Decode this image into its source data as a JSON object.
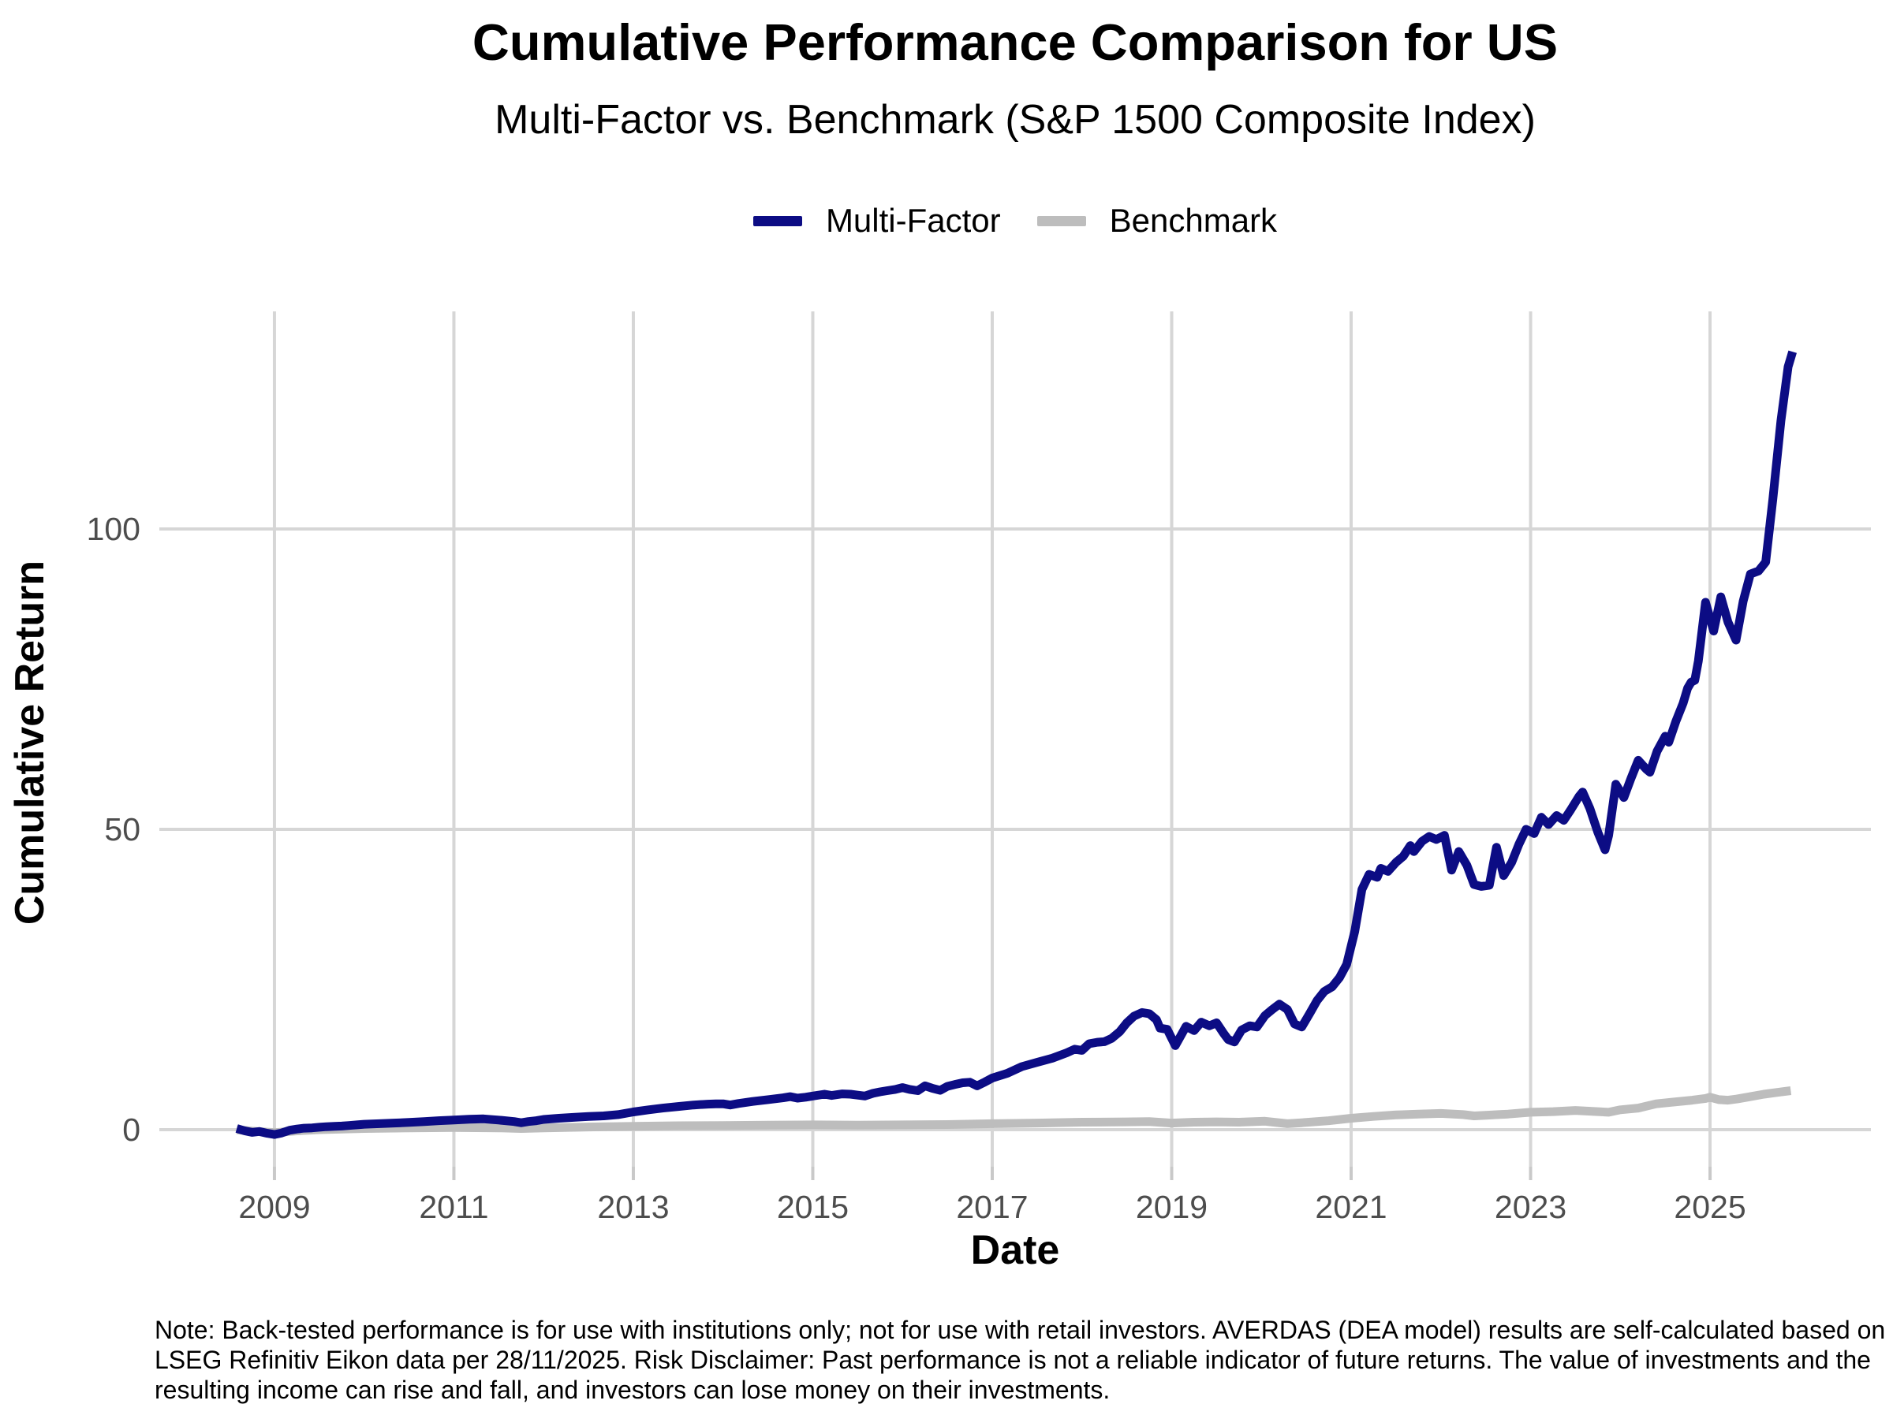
{
  "header": {
    "title": "Cumulative Performance Comparison for US",
    "subtitle": "Multi-Factor vs. Benchmark (S&P 1500 Composite Index)"
  },
  "legend": {
    "items": [
      {
        "label": "Multi-Factor",
        "color": "#0c0c84"
      },
      {
        "label": "Benchmark",
        "color": "#bdbdbd"
      }
    ]
  },
  "axes": {
    "x": {
      "label": "Date"
    },
    "y": {
      "label": "Cumulative Return"
    }
  },
  "note": "Note: Back-tested performance is for use with institutions only; not for use with retail investors. AVERDAS (DEA model) results are self-calculated based on LSEG Refinitiv Eikon data per 28/11/2025. Risk Disclaimer: Past performance is not a reliable indicator of future returns. The value of investments and the resulting income can rise and fall, and investors can lose money on their investments.",
  "colors": {
    "gridline": "#d6d6d6",
    "tick_mark": "#c9c9c9",
    "tick_text": "#4d4d4d",
    "background": "#ffffff"
  },
  "chart_data": {
    "type": "line",
    "title": "Cumulative Performance Comparison for US",
    "subtitle": "Multi-Factor vs. Benchmark (S&P 1500 Composite Index)",
    "xlabel": "Date",
    "ylabel": "Cumulative Return",
    "legend_position": "top-center",
    "grid": true,
    "x_ticks": [
      2009,
      2011,
      2013,
      2015,
      2017,
      2019,
      2021,
      2023,
      2025
    ],
    "y_ticks": [
      0,
      50,
      100
    ],
    "x_domain": [
      2007.717,
      2026.793
    ],
    "y_domain": [
      -6.17,
      136.22
    ],
    "series": [
      {
        "name": "Benchmark",
        "color": "#bdbdbd",
        "points": [
          [
            2008.58,
            0.0
          ],
          [
            2008.75,
            -0.25
          ],
          [
            2009.0,
            -0.5
          ],
          [
            2009.25,
            -0.2
          ],
          [
            2009.5,
            0.0
          ],
          [
            2009.75,
            0.1
          ],
          [
            2010.0,
            0.2
          ],
          [
            2010.5,
            0.3
          ],
          [
            2011.0,
            0.35
          ],
          [
            2011.5,
            0.3
          ],
          [
            2011.75,
            0.2
          ],
          [
            2012.0,
            0.3
          ],
          [
            2012.5,
            0.45
          ],
          [
            2013.0,
            0.55
          ],
          [
            2013.5,
            0.65
          ],
          [
            2014.0,
            0.7
          ],
          [
            2014.5,
            0.75
          ],
          [
            2015.0,
            0.8
          ],
          [
            2015.5,
            0.75
          ],
          [
            2016.0,
            0.8
          ],
          [
            2016.5,
            0.85
          ],
          [
            2017.0,
            1.0
          ],
          [
            2017.5,
            1.1
          ],
          [
            2018.0,
            1.25
          ],
          [
            2018.5,
            1.3
          ],
          [
            2018.75,
            1.35
          ],
          [
            2019.0,
            1.1
          ],
          [
            2019.25,
            1.25
          ],
          [
            2019.5,
            1.3
          ],
          [
            2019.75,
            1.25
          ],
          [
            2020.04,
            1.4
          ],
          [
            2020.29,
            1.0
          ],
          [
            2020.45,
            1.15
          ],
          [
            2020.75,
            1.5
          ],
          [
            2021.0,
            1.9
          ],
          [
            2021.25,
            2.2
          ],
          [
            2021.5,
            2.45
          ],
          [
            2021.75,
            2.6
          ],
          [
            2022.0,
            2.7
          ],
          [
            2022.25,
            2.5
          ],
          [
            2022.37,
            2.3
          ],
          [
            2022.5,
            2.4
          ],
          [
            2022.75,
            2.6
          ],
          [
            2023.0,
            2.9
          ],
          [
            2023.25,
            3.0
          ],
          [
            2023.5,
            3.2
          ],
          [
            2023.75,
            3.0
          ],
          [
            2023.87,
            2.9
          ],
          [
            2024.0,
            3.3
          ],
          [
            2024.2,
            3.6
          ],
          [
            2024.4,
            4.3
          ],
          [
            2024.6,
            4.6
          ],
          [
            2024.8,
            4.9
          ],
          [
            2024.95,
            5.2
          ],
          [
            2025.0,
            5.4
          ],
          [
            2025.1,
            5.0
          ],
          [
            2025.2,
            4.9
          ],
          [
            2025.3,
            5.1
          ],
          [
            2025.45,
            5.5
          ],
          [
            2025.6,
            5.9
          ],
          [
            2025.75,
            6.2
          ],
          [
            2025.9,
            6.5
          ]
        ]
      },
      {
        "name": "Multi-Factor",
        "color": "#0c0c84",
        "points": [
          [
            2008.58,
            0.2
          ],
          [
            2008.67,
            -0.2
          ],
          [
            2008.75,
            -0.45
          ],
          [
            2008.83,
            -0.3
          ],
          [
            2008.92,
            -0.6
          ],
          [
            2009.0,
            -0.8
          ],
          [
            2009.08,
            -0.55
          ],
          [
            2009.17,
            -0.1
          ],
          [
            2009.25,
            0.1
          ],
          [
            2009.33,
            0.25
          ],
          [
            2009.42,
            0.3
          ],
          [
            2009.5,
            0.4
          ],
          [
            2009.58,
            0.5
          ],
          [
            2009.67,
            0.55
          ],
          [
            2009.75,
            0.6
          ],
          [
            2009.83,
            0.7
          ],
          [
            2009.92,
            0.8
          ],
          [
            2010.0,
            0.9
          ],
          [
            2010.17,
            1.0
          ],
          [
            2010.33,
            1.1
          ],
          [
            2010.5,
            1.2
          ],
          [
            2010.67,
            1.35
          ],
          [
            2010.83,
            1.5
          ],
          [
            2011.0,
            1.6
          ],
          [
            2011.17,
            1.75
          ],
          [
            2011.33,
            1.8
          ],
          [
            2011.5,
            1.6
          ],
          [
            2011.67,
            1.35
          ],
          [
            2011.75,
            1.15
          ],
          [
            2011.83,
            1.35
          ],
          [
            2011.92,
            1.5
          ],
          [
            2012.0,
            1.7
          ],
          [
            2012.17,
            1.9
          ],
          [
            2012.33,
            2.05
          ],
          [
            2012.5,
            2.2
          ],
          [
            2012.67,
            2.3
          ],
          [
            2012.83,
            2.5
          ],
          [
            2013.0,
            2.95
          ],
          [
            2013.17,
            3.3
          ],
          [
            2013.33,
            3.6
          ],
          [
            2013.5,
            3.85
          ],
          [
            2013.67,
            4.1
          ],
          [
            2013.83,
            4.25
          ],
          [
            2013.92,
            4.3
          ],
          [
            2014.0,
            4.3
          ],
          [
            2014.08,
            4.1
          ],
          [
            2014.17,
            4.35
          ],
          [
            2014.33,
            4.7
          ],
          [
            2014.5,
            5.0
          ],
          [
            2014.67,
            5.3
          ],
          [
            2014.75,
            5.5
          ],
          [
            2014.83,
            5.25
          ],
          [
            2014.92,
            5.4
          ],
          [
            2015.0,
            5.6
          ],
          [
            2015.13,
            5.9
          ],
          [
            2015.21,
            5.7
          ],
          [
            2015.33,
            5.95
          ],
          [
            2015.42,
            5.9
          ],
          [
            2015.5,
            5.75
          ],
          [
            2015.58,
            5.6
          ],
          [
            2015.67,
            6.05
          ],
          [
            2015.75,
            6.3
          ],
          [
            2015.83,
            6.5
          ],
          [
            2015.92,
            6.7
          ],
          [
            2016.0,
            7.0
          ],
          [
            2016.08,
            6.7
          ],
          [
            2016.17,
            6.5
          ],
          [
            2016.25,
            7.3
          ],
          [
            2016.33,
            6.9
          ],
          [
            2016.42,
            6.55
          ],
          [
            2016.5,
            7.2
          ],
          [
            2016.58,
            7.5
          ],
          [
            2016.67,
            7.8
          ],
          [
            2016.75,
            7.9
          ],
          [
            2016.83,
            7.3
          ],
          [
            2016.92,
            7.95
          ],
          [
            2017.0,
            8.6
          ],
          [
            2017.17,
            9.4
          ],
          [
            2017.33,
            10.5
          ],
          [
            2017.5,
            11.2
          ],
          [
            2017.67,
            11.9
          ],
          [
            2017.83,
            12.8
          ],
          [
            2017.92,
            13.4
          ],
          [
            2018.0,
            13.2
          ],
          [
            2018.08,
            14.3
          ],
          [
            2018.17,
            14.55
          ],
          [
            2018.25,
            14.65
          ],
          [
            2018.33,
            15.2
          ],
          [
            2018.42,
            16.3
          ],
          [
            2018.5,
            17.8
          ],
          [
            2018.58,
            18.9
          ],
          [
            2018.67,
            19.5
          ],
          [
            2018.75,
            19.3
          ],
          [
            2018.83,
            18.3
          ],
          [
            2018.87,
            16.9
          ],
          [
            2018.95,
            16.7
          ],
          [
            2019.04,
            14.0
          ],
          [
            2019.16,
            17.2
          ],
          [
            2019.25,
            16.5
          ],
          [
            2019.33,
            17.9
          ],
          [
            2019.42,
            17.3
          ],
          [
            2019.5,
            17.8
          ],
          [
            2019.58,
            16.0
          ],
          [
            2019.63,
            15.0
          ],
          [
            2019.7,
            14.6
          ],
          [
            2019.78,
            16.6
          ],
          [
            2019.87,
            17.3
          ],
          [
            2019.95,
            17.1
          ],
          [
            2020.04,
            19.0
          ],
          [
            2020.12,
            20.0
          ],
          [
            2020.2,
            20.9
          ],
          [
            2020.29,
            20.0
          ],
          [
            2020.37,
            17.6
          ],
          [
            2020.45,
            17.1
          ],
          [
            2020.54,
            19.4
          ],
          [
            2020.62,
            21.5
          ],
          [
            2020.7,
            23.0
          ],
          [
            2020.79,
            23.8
          ],
          [
            2020.87,
            25.3
          ],
          [
            2020.95,
            27.5
          ],
          [
            2021.04,
            33.0
          ],
          [
            2021.12,
            40.0
          ],
          [
            2021.2,
            42.5
          ],
          [
            2021.29,
            42.0
          ],
          [
            2021.33,
            43.5
          ],
          [
            2021.41,
            43.0
          ],
          [
            2021.5,
            44.5
          ],
          [
            2021.58,
            45.5
          ],
          [
            2021.66,
            47.3
          ],
          [
            2021.7,
            46.3
          ],
          [
            2021.79,
            48.0
          ],
          [
            2021.87,
            48.8
          ],
          [
            2021.95,
            48.3
          ],
          [
            2022.04,
            49.0
          ],
          [
            2022.12,
            43.2
          ],
          [
            2022.2,
            46.3
          ],
          [
            2022.29,
            44.0
          ],
          [
            2022.37,
            40.8
          ],
          [
            2022.45,
            40.5
          ],
          [
            2022.54,
            40.7
          ],
          [
            2022.62,
            47.0
          ],
          [
            2022.7,
            42.3
          ],
          [
            2022.79,
            44.5
          ],
          [
            2022.87,
            47.5
          ],
          [
            2022.95,
            50.0
          ],
          [
            2023.04,
            49.3
          ],
          [
            2023.12,
            52.0
          ],
          [
            2023.2,
            50.8
          ],
          [
            2023.29,
            52.3
          ],
          [
            2023.37,
            51.5
          ],
          [
            2023.45,
            53.3
          ],
          [
            2023.54,
            55.5
          ],
          [
            2023.58,
            56.2
          ],
          [
            2023.66,
            53.5
          ],
          [
            2023.75,
            49.5
          ],
          [
            2023.83,
            46.6
          ],
          [
            2023.87,
            49.0
          ],
          [
            2023.95,
            57.5
          ],
          [
            2024.04,
            55.3
          ],
          [
            2024.12,
            58.5
          ],
          [
            2024.2,
            61.5
          ],
          [
            2024.29,
            60.0
          ],
          [
            2024.33,
            59.5
          ],
          [
            2024.41,
            63.0
          ],
          [
            2024.5,
            65.5
          ],
          [
            2024.54,
            64.5
          ],
          [
            2024.62,
            68.0
          ],
          [
            2024.7,
            71.0
          ],
          [
            2024.75,
            73.5
          ],
          [
            2024.79,
            74.5
          ],
          [
            2024.83,
            74.8
          ],
          [
            2024.87,
            78.0
          ],
          [
            2024.95,
            87.8
          ],
          [
            2025.04,
            83.0
          ],
          [
            2025.12,
            88.7
          ],
          [
            2025.2,
            84.5
          ],
          [
            2025.29,
            81.5
          ],
          [
            2025.37,
            88.0
          ],
          [
            2025.45,
            92.5
          ],
          [
            2025.54,
            93.0
          ],
          [
            2025.62,
            94.5
          ],
          [
            2025.7,
            105.0
          ],
          [
            2025.79,
            118.0
          ],
          [
            2025.87,
            127.0
          ],
          [
            2025.92,
            129.5
          ]
        ]
      }
    ]
  }
}
